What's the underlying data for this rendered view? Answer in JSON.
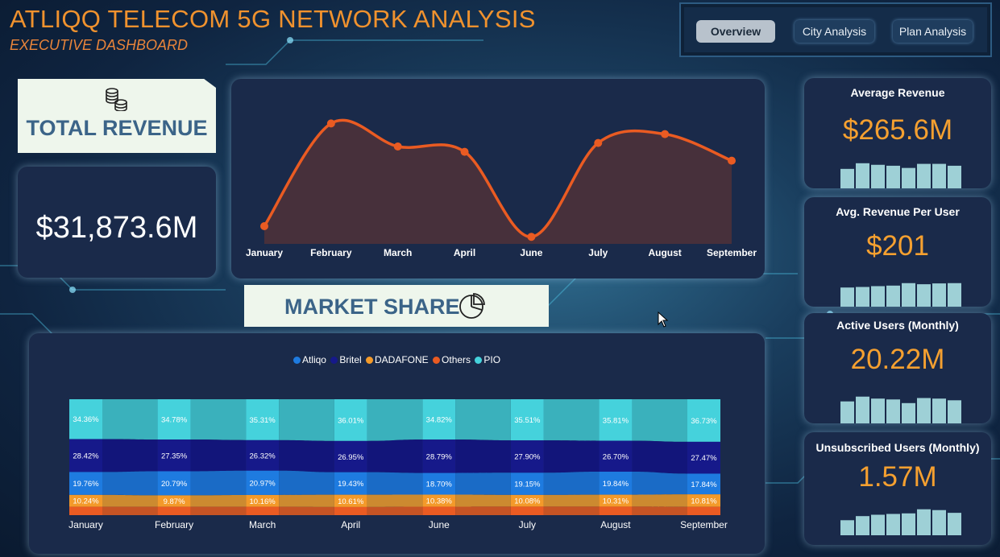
{
  "header": {
    "title": "ATLIQQ TELECOM 5G NETWORK ANALYSIS",
    "subtitle": "EXECUTIVE DASHBOARD"
  },
  "nav": {
    "buttons": [
      {
        "label": "Overview",
        "active": true
      },
      {
        "label": "City Analysis",
        "active": false
      },
      {
        "label": "Plan Analysis",
        "active": false
      }
    ]
  },
  "total_revenue": {
    "label": "TOTAL REVENUE",
    "value": "$31,873.6M",
    "icon": "coins-icon"
  },
  "market_share": {
    "label": "MARKET SHARE",
    "icon": "pie-chart-icon"
  },
  "kpis": [
    {
      "title": "Average Revenue",
      "value": "$265.6M",
      "spark": [
        0.62,
        0.8,
        0.75,
        0.72,
        0.65,
        0.78,
        0.78,
        0.72
      ]
    },
    {
      "title": "Avg. Revenue Per User",
      "value": "$201",
      "spark": [
        0.7,
        0.72,
        0.75,
        0.77,
        0.86,
        0.82,
        0.85,
        0.86
      ]
    },
    {
      "title": "Active Users (Monthly)",
      "value": "20.22M",
      "spark": [
        0.78,
        0.95,
        0.88,
        0.85,
        0.72,
        0.9,
        0.88,
        0.82
      ]
    },
    {
      "title": "Unsubscribed Users (Monthly)",
      "value": "1.57M",
      "spark": [
        0.55,
        0.7,
        0.75,
        0.78,
        0.8,
        0.95,
        0.92,
        0.82
      ]
    }
  ],
  "colors": {
    "accent": "#f0922e",
    "line": "#ea5b22",
    "card_bg": "#1a2a4a",
    "spark": "#9ed0d6",
    "Atliqo": "#1e7be0",
    "Britel": "#16198a",
    "DADAFONE": "#f39a2a",
    "Others": "#ea5b22",
    "PIO": "#45d2dc"
  },
  "chart_data": [
    {
      "type": "area",
      "categories": [
        "January",
        "February",
        "March",
        "April",
        "June",
        "July",
        "August",
        "September"
      ],
      "values": [
        10,
        68,
        55,
        52,
        4,
        57,
        62,
        47
      ],
      "ylim": [
        0,
        75
      ],
      "grid": false
    },
    {
      "type": "bar",
      "stacked": true,
      "normalized": true,
      "categories": [
        "January",
        "February",
        "March",
        "April",
        "June",
        "July",
        "August",
        "September"
      ],
      "legend_position": "top",
      "series": [
        {
          "name": "PIO",
          "values": [
            34.36,
            34.78,
            35.31,
            36.01,
            34.82,
            35.51,
            35.81,
            36.73
          ]
        },
        {
          "name": "Britel",
          "values": [
            28.42,
            27.35,
            26.32,
            26.95,
            28.79,
            27.9,
            26.7,
            27.47
          ]
        },
        {
          "name": "Atliqo",
          "values": [
            19.76,
            20.79,
            20.97,
            19.43,
            18.7,
            19.15,
            19.84,
            17.84
          ]
        },
        {
          "name": "DADAFONE",
          "values": [
            10.24,
            9.87,
            10.16,
            10.61,
            10.38,
            10.08,
            10.31,
            10.81
          ]
        },
        {
          "name": "Others",
          "values": [
            7.22,
            7.21,
            7.24,
            7.0,
            7.31,
            7.36,
            7.34,
            7.15
          ]
        }
      ],
      "legend_order": [
        "Atliqo",
        "Britel",
        "DADAFONE",
        "Others",
        "PIO"
      ],
      "value_labels": {
        "PIO": [
          "34.36%",
          "34.78%",
          "35.31%",
          "36.01%",
          "34.82%",
          "35.51%",
          "35.81%",
          "36.73%"
        ],
        "Britel": [
          "28.42%",
          "27.35%",
          "26.32%",
          "26.95%",
          "28.79%",
          "27.90%",
          "26.70%",
          "27.47%"
        ],
        "Atliqo": [
          "19.76%",
          "20.79%",
          "20.97%",
          "19.43%",
          "18.70%",
          "19.15%",
          "19.84%",
          "17.84%"
        ],
        "DADAFONE": [
          "10.24%",
          "9.87%",
          "10.16%",
          "10.61%",
          "10.38%",
          "10.08%",
          "10.31%",
          "10.81%"
        ]
      }
    }
  ]
}
